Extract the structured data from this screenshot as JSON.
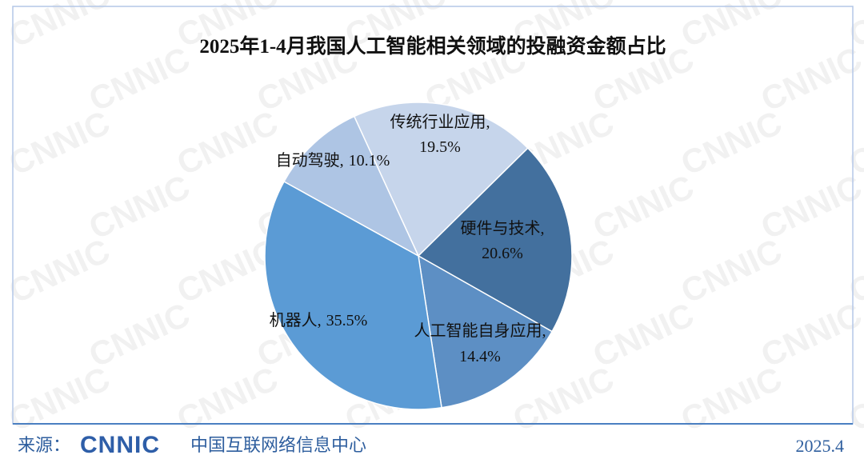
{
  "chart_data": {
    "type": "pie",
    "title": "2025年1-4月我国人工智能相关领域的投融资金额占比",
    "categories": [
      "传统行业应用",
      "硬件与技术",
      "人工智能自身应用",
      "机器人",
      "自动驾驶"
    ],
    "values": [
      19.5,
      20.6,
      14.4,
      35.5,
      10.1
    ],
    "value_labels": [
      "19.5%",
      "20.6%",
      "14.4%",
      "35.5%",
      "10.1%"
    ],
    "label_separator": ",",
    "colors": [
      "#c6d5eb",
      "#43709e",
      "#5d8fc4",
      "#5b9bd5",
      "#aec5e4"
    ]
  },
  "watermark": "CNNIC",
  "footer": {
    "source_label": "来源：",
    "source_logo": "CNNIC",
    "source_name": "中国互联网络信息中心",
    "date": "2025.4"
  }
}
